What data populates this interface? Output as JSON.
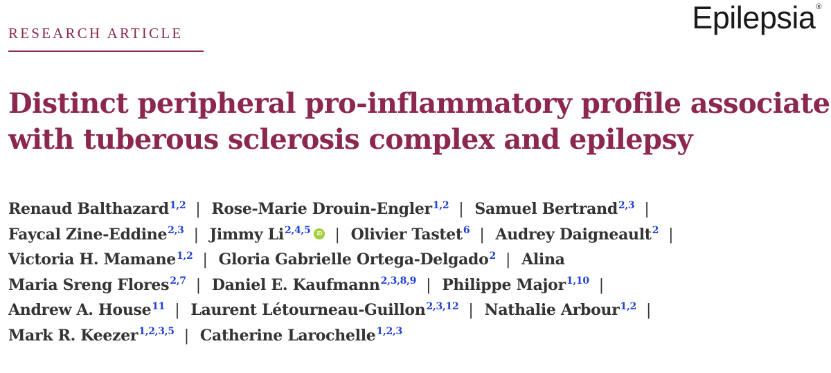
{
  "header": {
    "section_label": "RESEARCH ARTICLE",
    "journal_name": "Epilepsia",
    "registered_mark": "®"
  },
  "article": {
    "title_lines": [
      "Distinct peripheral pro-inflammatory profile associated",
      "with tuberous sclerosis complex and epilepsy"
    ]
  },
  "authors": {
    "lines": [
      [
        {
          "name": "Renaud Balthazard",
          "aff": "1,2",
          "sep": true
        },
        {
          "name": "Rose-Marie Drouin-Engler",
          "aff": "1,2",
          "sep": true
        },
        {
          "name": "Samuel Bertrand",
          "aff": "2,3",
          "sep": true
        }
      ],
      [
        {
          "name": "Faycal Zine-Eddine",
          "aff": "2,3",
          "sep": true
        },
        {
          "name": "Jimmy Li",
          "aff": "2,4,5",
          "orcid": true,
          "orcid_label": "iD",
          "sep": true
        },
        {
          "name": "Olivier Tastet",
          "aff": "6",
          "sep": true
        },
        {
          "name": "Audrey Daigneault",
          "aff": "2",
          "sep": true
        }
      ],
      [
        {
          "name": "Victoria H. Mamane",
          "aff": "1,2",
          "sep": true
        },
        {
          "name": "Gloria Gabrielle Ortega-Delgado",
          "aff": "2",
          "sep": true
        },
        {
          "name": "Alina",
          "aff": "",
          "sep": false
        }
      ],
      [
        {
          "name": "Maria Sreng Flores",
          "aff": "2,7",
          "sep": true
        },
        {
          "name": "Daniel E. Kaufmann",
          "aff": "2,3,8,9",
          "sep": true
        },
        {
          "name": "Philippe Major",
          "aff": "1,10",
          "sep": true
        }
      ],
      [
        {
          "name": "Andrew A. House",
          "aff": "11",
          "sep": true
        },
        {
          "name": "Laurent Létourneau-Guillon",
          "aff": "2,3,12",
          "sep": true
        },
        {
          "name": "Nathalie Arbour",
          "aff": "1,2",
          "sep": true
        }
      ],
      [
        {
          "name": "Mark R. Keezer",
          "aff": "1,2,3,5",
          "sep": true
        },
        {
          "name": "Catherine Larochelle",
          "aff": "1,2,3",
          "sep": false
        }
      ]
    ],
    "separator": "|"
  }
}
